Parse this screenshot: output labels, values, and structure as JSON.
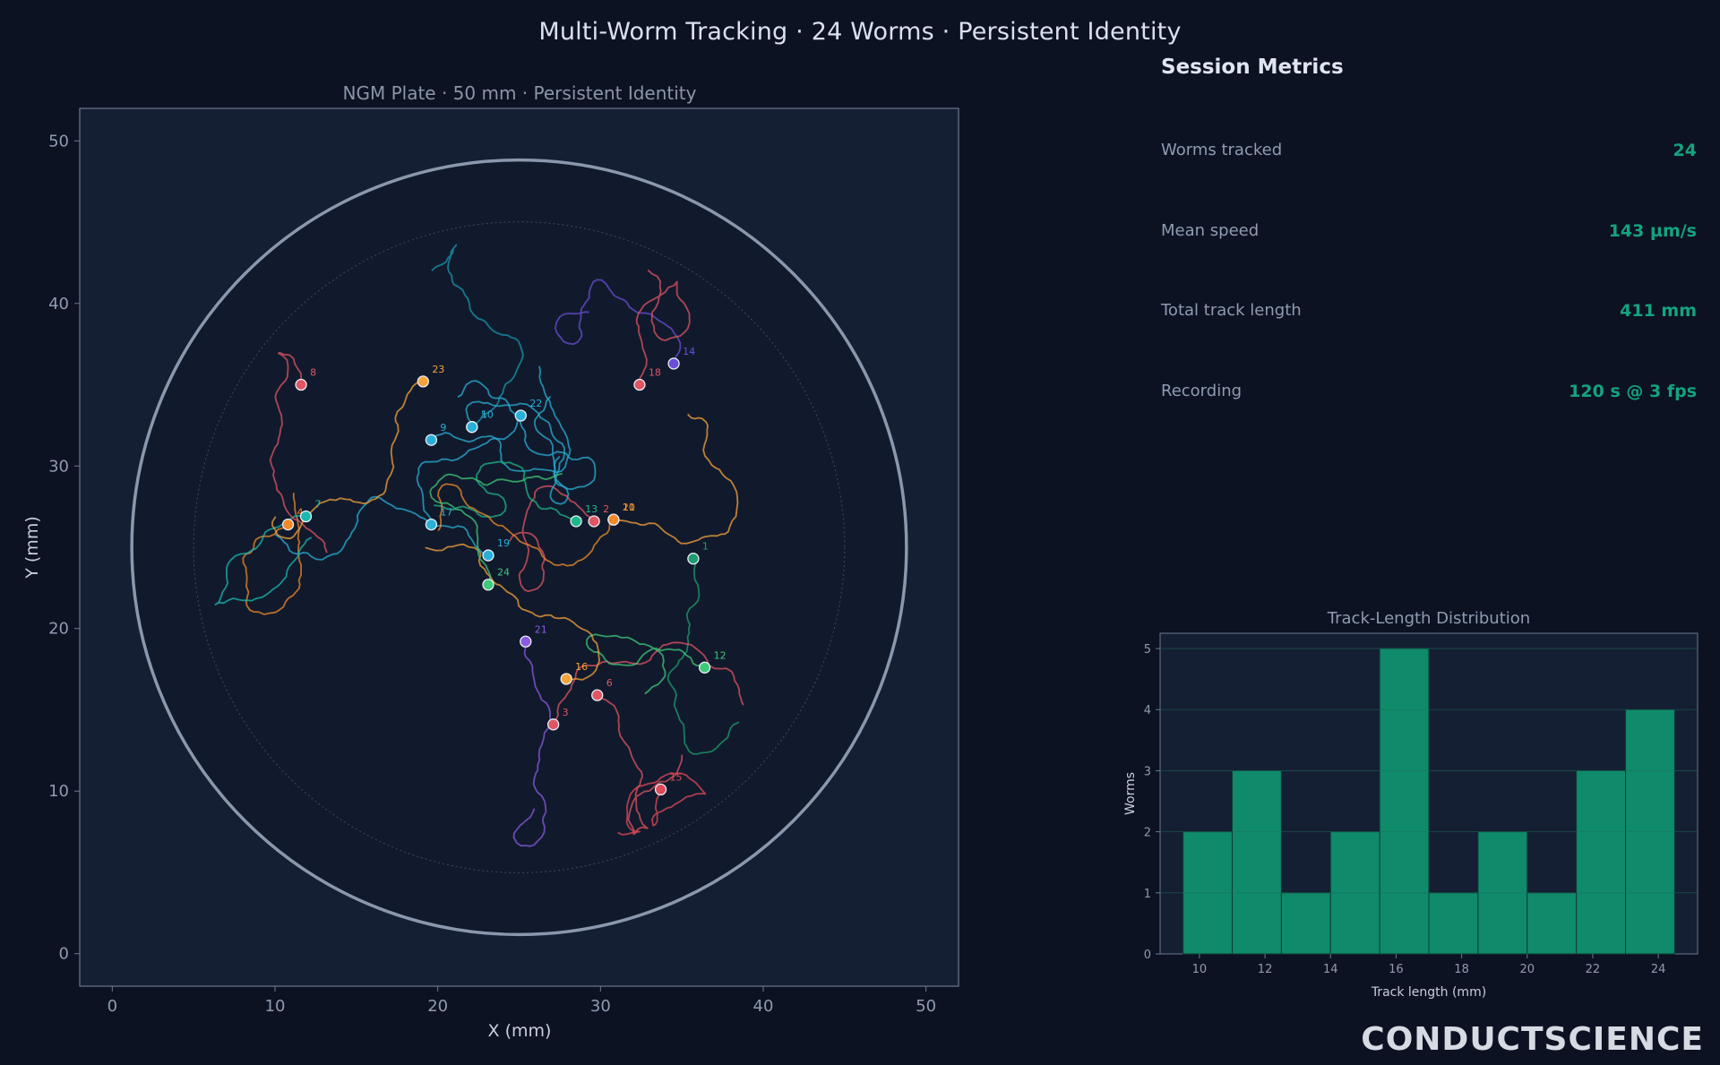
{
  "title": "Multi-Worm Tracking · 24 Worms · Persistent Identity",
  "colors": {
    "background": "#0c1222",
    "panel": "#141f33",
    "accent": "#0f8a6a",
    "value": "#14a37f",
    "plate_ring": "#8a97ad"
  },
  "chart_data": [
    {
      "type": "scatter",
      "title": "NGM Plate · 50 mm · Persistent Identity",
      "xlabel": "X (mm)",
      "ylabel": "Y (mm)",
      "xlim": [
        -2,
        52
      ],
      "ylim": [
        -2,
        52
      ],
      "xticks": [
        0,
        10,
        20,
        30,
        40,
        50
      ],
      "yticks": [
        0,
        10,
        20,
        30,
        40,
        50
      ],
      "grid": false,
      "plate": {
        "center": [
          25,
          25
        ],
        "radius_mm": 23.8,
        "inner_radius_mm": 20
      },
      "worms": [
        {
          "id": "1",
          "x": 35.7,
          "y": 24.3,
          "color": "#1f9c6e"
        },
        {
          "id": "2",
          "x": 29.6,
          "y": 26.6,
          "color": "#e05563"
        },
        {
          "id": "3",
          "x": 27.1,
          "y": 14.1,
          "color": "#e05563"
        },
        {
          "id": "4",
          "x": 10.8,
          "y": 26.4,
          "color": "#f28a2a"
        },
        {
          "id": "5",
          "x": 22.1,
          "y": 32.4,
          "color": "#1a98b0"
        },
        {
          "id": "6",
          "x": 29.8,
          "y": 15.9,
          "color": "#e05563"
        },
        {
          "id": "7",
          "x": 11.9,
          "y": 26.9,
          "color": "#1bb8b0"
        },
        {
          "id": "8",
          "x": 11.6,
          "y": 35.0,
          "color": "#e05563"
        },
        {
          "id": "9",
          "x": 19.6,
          "y": 31.6,
          "color": "#2ab0d8"
        },
        {
          "id": "10",
          "x": 22.1,
          "y": 32.4,
          "color": "#2ab0d8"
        },
        {
          "id": "11",
          "x": 30.8,
          "y": 26.7,
          "color": "#f5a33b"
        },
        {
          "id": "12",
          "x": 36.4,
          "y": 17.6,
          "color": "#40c97a"
        },
        {
          "id": "13",
          "x": 28.5,
          "y": 26.6,
          "color": "#1fb88a"
        },
        {
          "id": "14",
          "x": 34.5,
          "y": 36.3,
          "color": "#6a4fd8"
        },
        {
          "id": "15",
          "x": 33.7,
          "y": 10.1,
          "color": "#e04a5a"
        },
        {
          "id": "16",
          "x": 27.9,
          "y": 16.9,
          "color": "#f5a33b"
        },
        {
          "id": "17",
          "x": 19.6,
          "y": 26.4,
          "color": "#2ab0d8"
        },
        {
          "id": "18",
          "x": 32.4,
          "y": 35.0,
          "color": "#e05563"
        },
        {
          "id": "19",
          "x": 23.1,
          "y": 24.5,
          "color": "#2ab0d8"
        },
        {
          "id": "20",
          "x": 30.8,
          "y": 26.7,
          "color": "#f28a2a"
        },
        {
          "id": "21",
          "x": 25.4,
          "y": 19.2,
          "color": "#8a5ae0"
        },
        {
          "id": "22",
          "x": 25.1,
          "y": 33.1,
          "color": "#2ab0d8"
        },
        {
          "id": "23",
          "x": 19.1,
          "y": 35.2,
          "color": "#f5a33b"
        },
        {
          "id": "24",
          "x": 23.1,
          "y": 22.7,
          "color": "#40c97a"
        }
      ]
    },
    {
      "type": "bar",
      "title": "Track-Length Distribution",
      "xlabel": "Track length (mm)",
      "ylabel": "Worms",
      "bin_edges": [
        9.5,
        11,
        12.5,
        14,
        15.5,
        17,
        18.5,
        20,
        21.5,
        23,
        24.5
      ],
      "values": [
        2,
        3,
        1,
        2,
        5,
        1,
        2,
        1,
        3,
        4
      ],
      "xlim": [
        8.8,
        25.2
      ],
      "ylim": [
        0,
        5.25
      ],
      "xticks": [
        10,
        12,
        14,
        16,
        18,
        20,
        22,
        24
      ],
      "yticks": [
        0,
        1,
        2,
        3,
        4,
        5
      ],
      "color": "#0f8a6a"
    }
  ],
  "metrics": {
    "title": "Session Metrics",
    "rows": [
      {
        "label": "Worms tracked",
        "value": "24"
      },
      {
        "label": "Mean speed",
        "value": "143 µm/s"
      },
      {
        "label": "Total track length",
        "value": "411 mm"
      },
      {
        "label": "Recording",
        "value": "120 s @ 3 fps"
      }
    ]
  },
  "brand": "CONDUCTSCIENCE"
}
